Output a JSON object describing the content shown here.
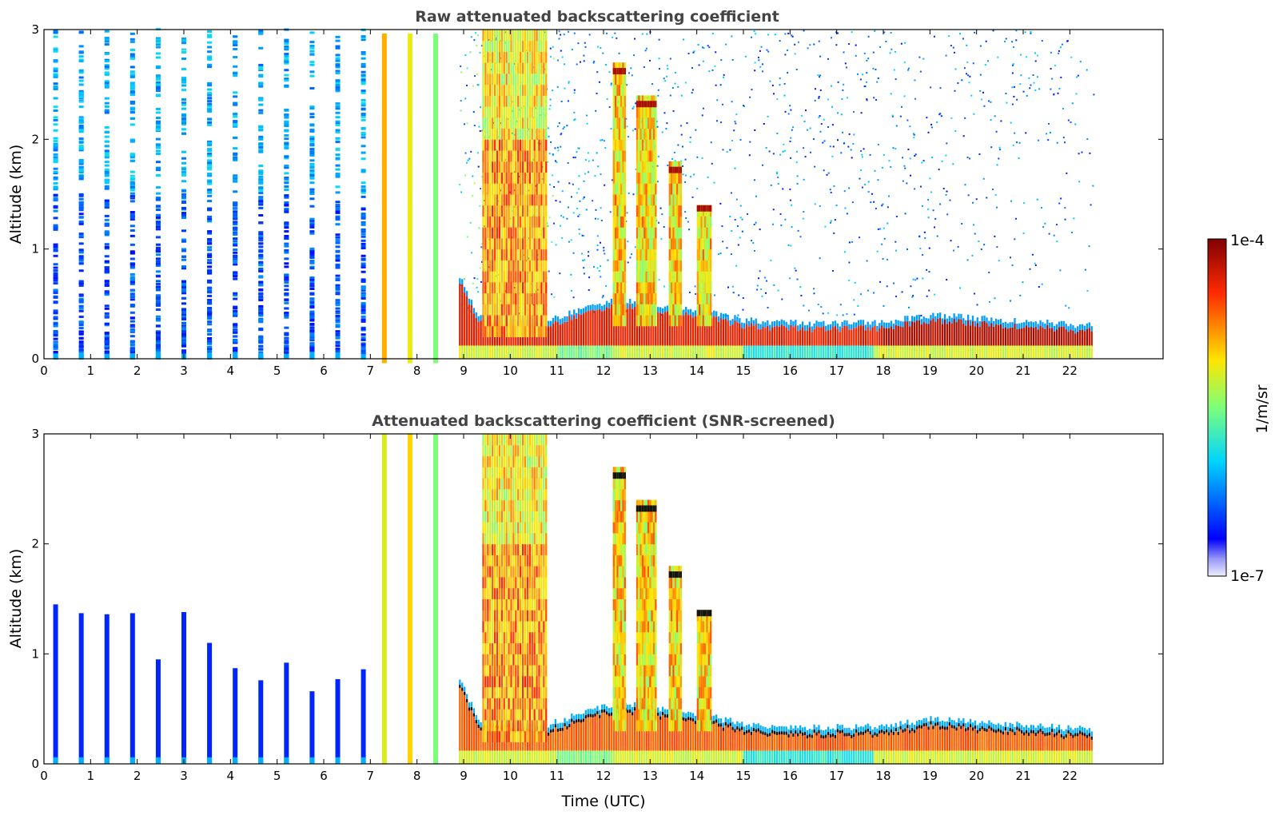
{
  "chart_data": [
    {
      "type": "heatmap",
      "title": "Raw attenuated backscattering coefficient",
      "xlabel": "",
      "ylabel": "Altitude (km)",
      "xlim": [
        0,
        24
      ],
      "ylim": [
        0,
        3
      ],
      "xticks": [
        "0",
        "1",
        "2",
        "3",
        "4",
        "5",
        "6",
        "7",
        "8",
        "9",
        "10",
        "11",
        "12",
        "13",
        "14",
        "15",
        "16",
        "17",
        "18",
        "19",
        "20",
        "21",
        "22"
      ],
      "yticks": [
        "0",
        "1",
        "2",
        "3"
      ],
      "profile_times_utc": [
        0.25,
        0.8,
        1.35,
        1.9,
        2.45,
        3.0,
        3.55,
        4.1,
        4.65,
        5.2,
        5.75,
        6.3,
        6.85,
        7.3,
        7.85,
        8.4
      ],
      "continuous_from_utc": 8.9,
      "continuous_to_utc": 22.5,
      "boundary_layer_top_km": [
        {
          "t": 8.9,
          "z": 0.7
        },
        {
          "t": 9.3,
          "z": 0.35
        },
        {
          "t": 10.8,
          "z": 0.3
        },
        {
          "t": 11.5,
          "z": 0.4
        },
        {
          "t": 12.3,
          "z": 0.5
        },
        {
          "t": 13.0,
          "z": 0.45
        },
        {
          "t": 14.0,
          "z": 0.4
        },
        {
          "t": 15.0,
          "z": 0.3
        },
        {
          "t": 16.5,
          "z": 0.27
        },
        {
          "t": 18.0,
          "z": 0.28
        },
        {
          "t": 19.0,
          "z": 0.35
        },
        {
          "t": 20.0,
          "z": 0.32
        },
        {
          "t": 22.5,
          "z": 0.25
        }
      ],
      "cloud_features": [
        {
          "t_start": 12.2,
          "t_end": 12.45,
          "z_top": 2.65
        },
        {
          "t_start": 12.7,
          "t_end": 13.1,
          "z_top": 2.35
        },
        {
          "t_start": 13.4,
          "t_end": 13.65,
          "z_top": 1.75
        },
        {
          "t_start": 14.0,
          "t_end": 14.3,
          "z_top": 1.4
        }
      ],
      "grid": false
    },
    {
      "type": "heatmap",
      "title": "Attenuated backscattering coefficient (SNR-screened)",
      "xlabel": "Time (UTC)",
      "ylabel": "Altitude (km)",
      "xlim": [
        0,
        24
      ],
      "ylim": [
        0,
        3
      ],
      "xticks": [
        "0",
        "1",
        "2",
        "3",
        "4",
        "5",
        "6",
        "7",
        "8",
        "9",
        "10",
        "11",
        "12",
        "13",
        "14",
        "15",
        "16",
        "17",
        "18",
        "19",
        "20",
        "21",
        "22"
      ],
      "yticks": [
        "0",
        "1",
        "2",
        "3"
      ],
      "screened_profile_tops_km": [
        {
          "t": 0.25,
          "z": 1.45
        },
        {
          "t": 0.8,
          "z": 1.37
        },
        {
          "t": 1.35,
          "z": 1.36
        },
        {
          "t": 1.9,
          "z": 1.37
        },
        {
          "t": 2.45,
          "z": 0.95
        },
        {
          "t": 3.0,
          "z": 1.38
        },
        {
          "t": 3.55,
          "z": 1.1
        },
        {
          "t": 4.1,
          "z": 0.87
        },
        {
          "t": 4.65,
          "z": 0.76
        },
        {
          "t": 5.2,
          "z": 0.92
        },
        {
          "t": 5.75,
          "z": 0.66
        },
        {
          "t": 6.3,
          "z": 0.77
        },
        {
          "t": 6.85,
          "z": 0.86
        }
      ],
      "grid": false
    }
  ],
  "colorbar": {
    "label": "1/m/sr",
    "max_label": "1e-4",
    "min_label": "1e-7",
    "scale": "log",
    "colormap": "jet"
  }
}
